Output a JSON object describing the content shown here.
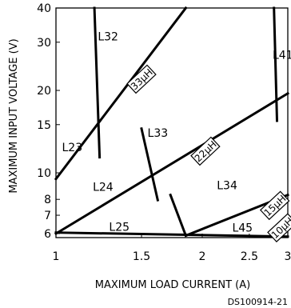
{
  "chart_data": {
    "type": "line",
    "title": "",
    "xlabel": "MAXIMUM LOAD CURRENT (A)",
    "ylabel": "MAXIMUM INPUT VOLTAGE (V)",
    "x_scale": "log",
    "y_scale": "log",
    "xlim": [
      1,
      3
    ],
    "ylim": [
      5.8,
      40
    ],
    "x_ticks": [
      1,
      1.5,
      2,
      2.5,
      3
    ],
    "x_tick_labels": [
      "1",
      "1.5",
      "2",
      "2.5",
      "3"
    ],
    "y_ticks": [
      6,
      7,
      8,
      10,
      15,
      20,
      30,
      40
    ],
    "y_tick_labels": [
      "6",
      "7",
      "8",
      "10",
      "15",
      "20",
      "30",
      "40"
    ],
    "grid": false,
    "series": [
      {
        "name": "33µH",
        "x": [
          1.0,
          1.85
        ],
        "y": [
          9.5,
          40.0
        ]
      },
      {
        "name": "22µH",
        "x": [
          1.0,
          3.0
        ],
        "y": [
          6.0,
          19.5
        ]
      },
      {
        "name": "15µH",
        "x": [
          1.85,
          3.0
        ],
        "y": [
          5.9,
          8.3
        ]
      },
      {
        "name": "10µH",
        "x": [
          1.0,
          3.0
        ],
        "y": [
          6.05,
          5.85
        ]
      },
      {
        "x": [
          1.2,
          1.23
        ],
        "y": [
          40.0,
          11.4
        ]
      },
      {
        "x": [
          1.5,
          1.62
        ],
        "y": [
          14.5,
          7.95
        ]
      },
      {
        "x": [
          1.72,
          1.85
        ],
        "y": [
          8.3,
          5.9
        ]
      },
      {
        "x": [
          2.81,
          2.85
        ],
        "y": [
          40.0,
          15.5
        ]
      }
    ],
    "region_labels": [
      {
        "text": "L32",
        "x": 1.28,
        "y": 31.5
      },
      {
        "text": "L41",
        "x": 2.93,
        "y": 27.0
      },
      {
        "text": "L23",
        "x": 1.08,
        "y": 12.4
      },
      {
        "text": "L33",
        "x": 1.62,
        "y": 14.0
      },
      {
        "text": "L24",
        "x": 1.25,
        "y": 8.9
      },
      {
        "text": "L34",
        "x": 2.25,
        "y": 9.0
      },
      {
        "text": "L25",
        "x": 1.35,
        "y": 6.35
      },
      {
        "text": "L45",
        "x": 2.42,
        "y": 6.3
      }
    ],
    "line_labels": [
      {
        "text": "33µH",
        "x": 1.5,
        "y": 22.0,
        "rotate": -43
      },
      {
        "text": "22µH",
        "x": 2.03,
        "y": 12.0,
        "rotate": -43
      },
      {
        "text": "15µH",
        "x": 2.82,
        "y": 7.6,
        "rotate": -43
      },
      {
        "text": "10µH",
        "x": 2.92,
        "y": 6.3,
        "rotate": -43
      }
    ],
    "footnote": "DS100914-21"
  }
}
